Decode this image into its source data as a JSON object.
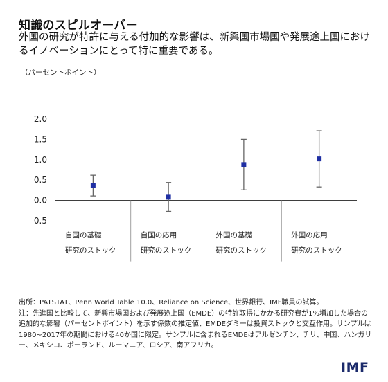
{
  "title": "知識のスピルオーバー",
  "subtitle": "外国の研究が特許に与える付加的な影響は、新興国市場国や発展途上国におけるイノベーションにとって特に重要である。",
  "unit_label": "（パーセントポイント）",
  "source_line": "出所：PATSTAT、Penn World Table 10.0、Reliance on Science、世界銀行、IMF職員の試算。",
  "note_text": "注：先進国と比較して、新興市場国および発展途上国（EMDE）の特許取得にかかる研究費が1%増加した場合の追加的な影響（パーセントポイント）を示す係数の推定値、EMDEダミーは投資ストックと交互作用。サンプルは1980~2017年の期間における40か国に限定。サンプルに含まれるEMDEはアルゼンチン、チリ、中国、ハンガリー、メキシコ、ポーランド、ルーマニア、ロシア、南アフリカ。",
  "logo_text": "IMF",
  "colors": {
    "point": "#1f2fa3",
    "errorbar": "#666666",
    "axis": "#222222"
  },
  "chart_data": {
    "type": "scatter",
    "categories": [
      [
        "自国の基礎",
        "研究のストック"
      ],
      [
        "自国の応用",
        "研究のストック"
      ],
      [
        "外国の基礎",
        "研究のストック"
      ],
      [
        "外国の応用",
        "研究のストック"
      ]
    ],
    "values": [
      0.36,
      0.08,
      0.88,
      1.02
    ],
    "error_low": [
      0.11,
      -0.27,
      0.26,
      0.33
    ],
    "error_high": [
      0.62,
      0.44,
      1.5,
      1.71
    ],
    "yticks": [
      "2.0",
      "1.5",
      "1.0",
      "0.5",
      "0.0",
      "-0.5"
    ],
    "ylim": [
      -0.5,
      2.0
    ],
    "grid": false,
    "legend": "none"
  }
}
